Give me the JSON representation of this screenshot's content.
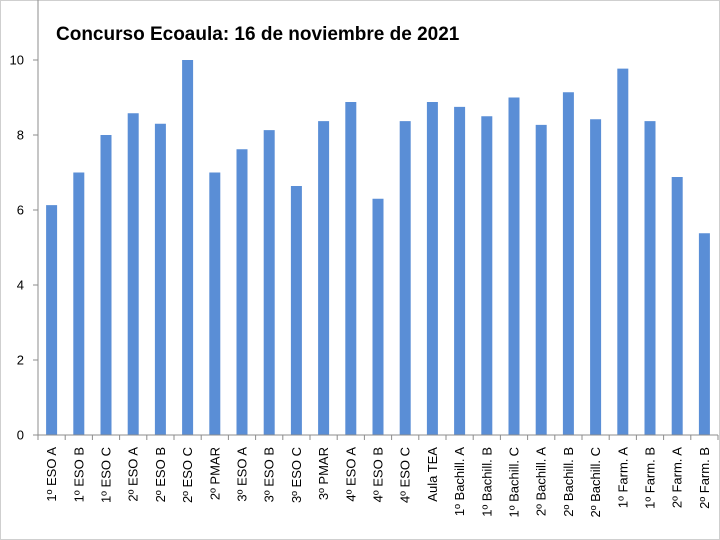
{
  "chart_data": {
    "type": "bar",
    "title": "Concurso Ecoaula: 16 de noviembre de 2021",
    "xlabel": "",
    "ylabel": "",
    "ylim": [
      0,
      10
    ],
    "yticks": [
      0,
      2,
      4,
      6,
      8,
      10
    ],
    "grid": false,
    "legend": "none",
    "bar_color": "#5a8ed6",
    "categories": [
      "1º ESO A",
      "1º ESO B",
      "1º ESO C",
      "2º ESO A",
      "2º ESO B",
      "2º ESO C",
      "2º PMAR",
      "3º ESO A",
      "3º ESO B",
      "3º ESO C",
      "3º PMAR",
      "4º ESO A",
      "4º ESO B",
      "4º ESO C",
      "Aula TEA",
      "1º Bachill. A",
      "1º Bachill. B",
      "1º Bachill. C",
      "2º Bachill. A",
      "2º Bachill. B",
      "2º Bachill. C",
      "1º Farm. A",
      "1º Farm. B",
      "2º Farm. A",
      "2º Farm. B"
    ],
    "values": [
      6.13,
      7.0,
      8.0,
      8.58,
      8.3,
      10.0,
      7.0,
      7.62,
      8.13,
      6.64,
      8.37,
      8.88,
      6.3,
      8.37,
      8.88,
      8.75,
      8.5,
      9.0,
      8.27,
      9.14,
      8.42,
      9.77,
      8.37,
      6.88,
      5.38
    ]
  }
}
